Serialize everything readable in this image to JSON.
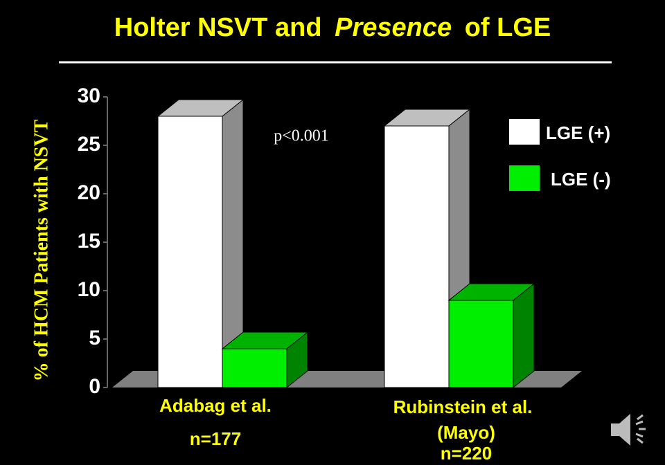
{
  "chart_data": {
    "type": "bar3d",
    "title": [
      "Holter NSVT and",
      "Presence",
      "of LGE"
    ],
    "y_label": "% of HCM Patients with NSVT",
    "annotation": "p<0.001",
    "categories": [
      [
        "Adabag et al.",
        "n=177"
      ],
      [
        "Rubinstein et al.",
        "(Mayo)",
        "n=220"
      ]
    ],
    "series": [
      {
        "name": "LGE (+)",
        "color": "#ffffff",
        "values": [
          28,
          27
        ]
      },
      {
        "name": "LGE (-)",
        "color": "#00ee00",
        "values": [
          4,
          9
        ]
      }
    ],
    "ylim": [
      0,
      30
    ],
    "yticks": [
      0,
      5,
      10,
      15,
      20,
      25,
      30
    ]
  }
}
